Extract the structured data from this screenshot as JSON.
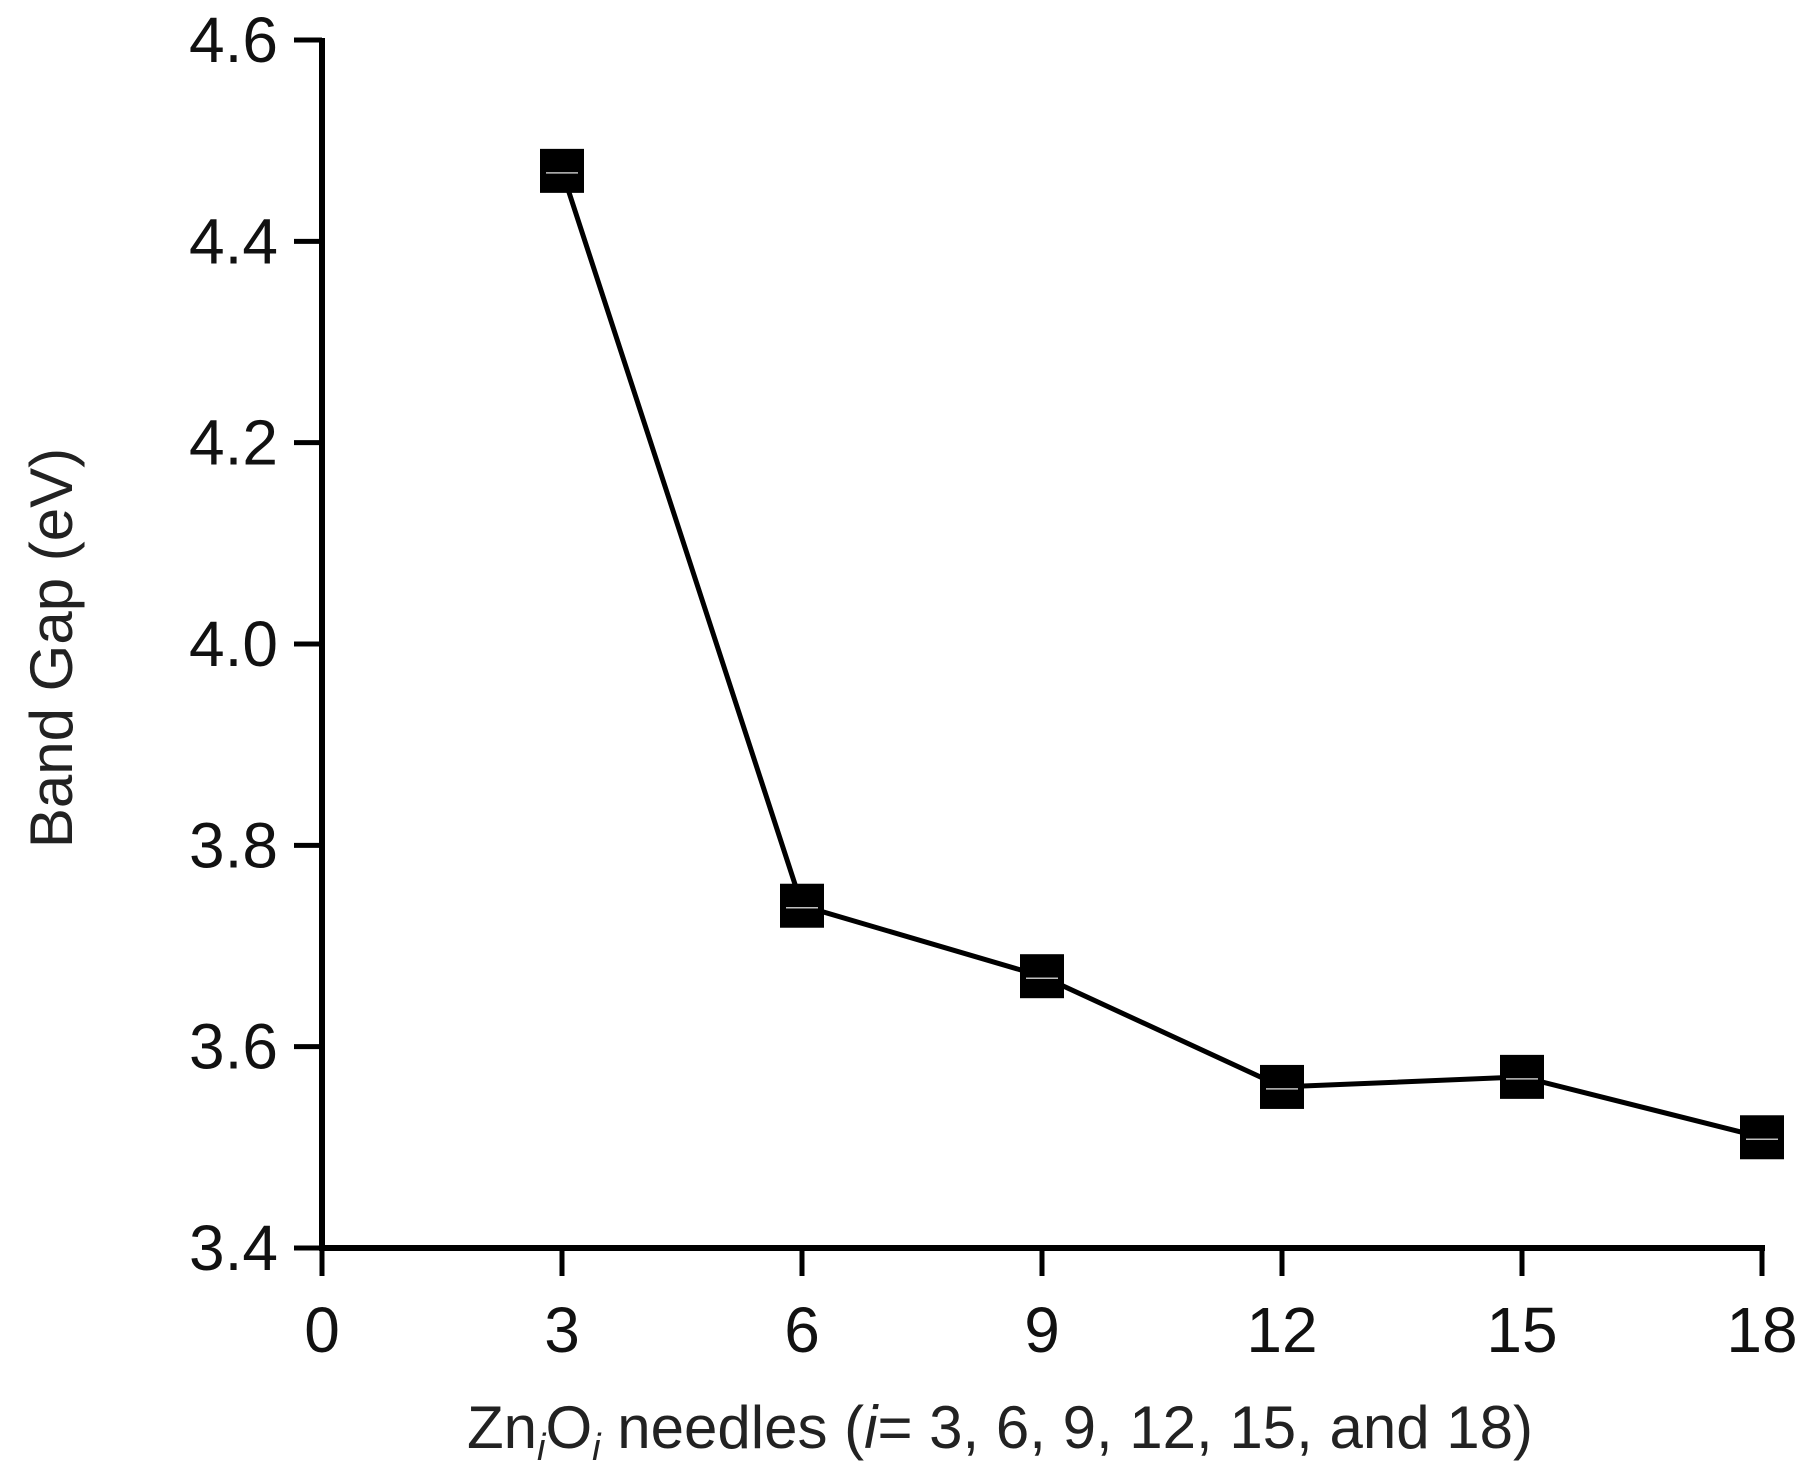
{
  "chart_data": {
    "type": "line",
    "title": "",
    "xlabel": {
      "parts": [
        {
          "text": "Zn",
          "style": "normal"
        },
        {
          "text": "i",
          "style": "italic-sub"
        },
        {
          "text": "O",
          "style": "normal"
        },
        {
          "text": "i",
          "style": "italic-sub"
        },
        {
          "text": " needles (",
          "style": "normal"
        },
        {
          "text": "i",
          "style": "italic"
        },
        {
          "text": "= 3, 6, 9, 12, 15, and 18)",
          "style": "normal"
        }
      ]
    },
    "ylabel": "Band Gap (eV)",
    "xlim": [
      0,
      18
    ],
    "ylim": [
      3.4,
      4.6
    ],
    "xticks": [
      0,
      3,
      6,
      9,
      12,
      15,
      18
    ],
    "xtick_labels": [
      "0",
      "3",
      "6",
      "9",
      "12",
      "15",
      "18"
    ],
    "yticks": [
      3.4,
      3.6,
      3.8,
      4.0,
      4.2,
      4.4,
      4.6
    ],
    "ytick_labels": [
      "3.4",
      "3.6",
      "3.8",
      "4.0",
      "4.2",
      "4.4",
      "4.6"
    ],
    "grid": false,
    "legend": "none",
    "marker": "square",
    "series": [
      {
        "x": [
          3,
          6,
          9,
          12,
          15,
          18
        ],
        "y": [
          4.47,
          3.74,
          3.67,
          3.56,
          3.57,
          3.51
        ],
        "color": "#000000"
      }
    ]
  }
}
